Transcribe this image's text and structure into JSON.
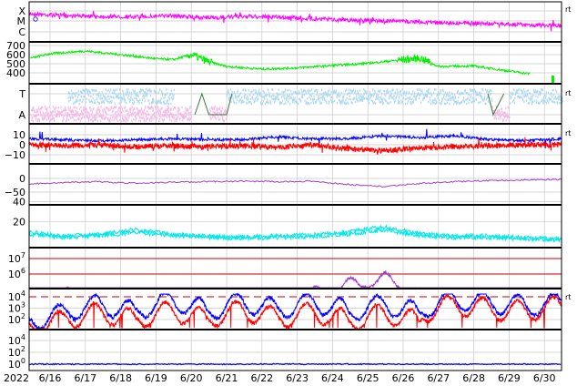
{
  "chart_data": {
    "type": "line",
    "title": "",
    "x_axis": {
      "year_label": "2022",
      "tick_labels": [
        "6/16",
        "6/17",
        "6/18",
        "6/19",
        "6/20",
        "6/21",
        "6/22",
        "6/23",
        "6/24",
        "6/25",
        "6/26",
        "6/27",
        "6/28",
        "6/29",
        "6/30"
      ],
      "range": [
        "2022-06-15T12:00",
        "2022-07-01T00:00"
      ],
      "grid": true
    },
    "panels": [
      {
        "id": "xray",
        "y_tick_labels": [
          "X",
          "M",
          "C"
        ],
        "right_label": "rt",
        "log_scale": true,
        "series": [
          {
            "color": "#ff00ff",
            "values": [
              0.78,
              0.72,
              0.7,
              0.69,
              0.72,
              0.66,
              0.7,
              0.68,
              0.64,
              0.6,
              0.58,
              0.55,
              0.52,
              0.5,
              0.47,
              0.44
            ]
          }
        ]
      },
      {
        "id": "solar-wind-speed",
        "y_tick_labels": [
          "700",
          "600",
          "500",
          "400"
        ],
        "ylim": [
          300,
          750
        ],
        "series": [
          {
            "color": "#00ee00",
            "x": [
              "6/15 12:00",
              "6/16",
              "6/17",
              "6/18",
              "6/19",
              "6/19 12:00",
              "6/20",
              "6/20 12:00",
              "6/21",
              "6/22",
              "6/23",
              "6/24",
              "6/25",
              "6/26",
              "6/26 12:00",
              "6/27",
              "6/28",
              "6/29",
              "6/29 12:00"
            ],
            "values": [
              565,
              610,
              640,
              600,
              555,
              545,
              600,
              520,
              470,
              440,
              455,
              480,
              505,
              545,
              560,
              470,
              475,
              420,
              390
            ]
          }
        ]
      },
      {
        "id": "imf-sector",
        "y_tick_labels": [
          "T",
          "A"
        ],
        "right_label": "rt",
        "series": [
          {
            "color": "#add8f0",
            "note": "toward",
            "segments": [
              [
                "6/16 12:00",
                "6/19 12:00"
              ],
              [
                "6/21",
                "6/28 12:00"
              ],
              [
                "6/29",
                "6/30 12:00"
              ]
            ]
          },
          {
            "color": "#f5b8e6",
            "note": "away",
            "segments": [
              [
                "6/15 12:00",
                "6/20"
              ],
              [
                "6/20 12:00",
                "6/21"
              ],
              [
                "6/28 12:00",
                "6/29"
              ]
            ]
          },
          {
            "color": "#3a7a3a",
            "note": "sector boundary",
            "x": [
              "6/19 21:00",
              "6/20 04:00",
              "6/21 02:00",
              "6/28 12:00",
              "6/28 20:00"
            ]
          }
        ]
      },
      {
        "id": "imf-bz",
        "y_tick_labels": [
          "10",
          "0",
          "−10"
        ],
        "right_label": "rt",
        "ylim": [
          -18,
          18
        ],
        "series": [
          {
            "color": "#0000ff",
            "values": [
              6,
              5,
              4,
              5,
              6,
              5,
              5,
              8,
              6,
              6,
              9,
              7,
              9,
              5,
              4,
              6
            ]
          },
          {
            "color": "#ff0000",
            "values": [
              0,
              -1,
              0,
              -2,
              -1,
              -2,
              -1,
              -3,
              0,
              -4,
              -6,
              -3,
              -2,
              -1,
              0,
              0
            ]
          }
        ]
      },
      {
        "id": "dst",
        "y_tick_labels": [
          "0",
          "−50"
        ],
        "ylim": [
          -75,
          20
        ],
        "series": [
          {
            "color": "#9c3fc8",
            "values": [
              -20,
              -15,
              -12,
              -18,
              -14,
              -12,
              -10,
              -12,
              -10,
              -22,
              -30,
              -18,
              -12,
              -8,
              -6,
              -4
            ]
          }
        ]
      },
      {
        "id": "kp-ap",
        "y_tick_labels": [
          "40",
          "20"
        ],
        "ylim": [
          0,
          55
        ],
        "series": [
          {
            "color": "#00e8e8",
            "values": [
              10,
              6,
              8,
              12,
              8,
              6,
              5,
              6,
              7,
              10,
              15,
              8,
              6,
              6,
              4,
              3
            ]
          }
        ]
      },
      {
        "id": "electron-flux",
        "y_tick_labels": [
          "10^7",
          "10^6"
        ],
        "log_scale": true,
        "threshold_lines_color": "#cc0000",
        "series": [
          {
            "color": "#9c3fc8",
            "values": [
              32000.0,
              50000.0,
              30000.0,
              40000.0,
              20000.0,
              40000.0,
              30000.0,
              30000.0,
              50000.0,
              200000.0,
              500000.0,
              30000.0,
              25000.0,
              30000.0,
              40000.0,
              20000.0
            ]
          }
        ]
      },
      {
        "id": "proton-flux",
        "y_tick_labels": [
          "10^4",
          "10^3",
          "10^2"
        ],
        "right_label": "rt",
        "log_scale": true,
        "dashed_threshold": 10000.0,
        "series": [
          {
            "color": "#0000ff",
            "values": [
              40,
              300,
              2000,
              300,
              4000,
              300,
              3000,
              600,
              3000,
              300,
              2000,
              200,
              5000,
              3000,
              1500,
              3000
            ]
          },
          {
            "color": "#ff0000",
            "values": [
              15,
              80,
              400,
              60,
              500,
              60,
              600,
              100,
              400,
              50,
              300,
              30,
              2000,
              800,
              500,
              1500
            ]
          }
        ]
      },
      {
        "id": "cosmic-ray",
        "y_tick_labels": [
          "10^4",
          "10^2",
          "10^0"
        ],
        "log_scale": true,
        "series": [
          {
            "color": "#0000ff",
            "values": [
              1,
              1,
              1,
              1,
              1,
              1,
              1,
              1,
              1,
              1,
              1,
              1,
              1,
              1,
              1,
              1
            ]
          }
        ]
      }
    ]
  }
}
